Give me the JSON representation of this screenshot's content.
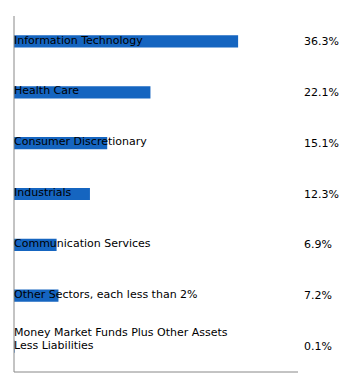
{
  "chart_data": {
    "type": "bar",
    "orientation": "horizontal",
    "categories": [
      "Information Technology",
      "Health Care",
      "Consumer Discretionary",
      "Industrials",
      "Communication Services",
      "Other Sectors, each less than 2%",
      "Money Market Funds Plus Other Assets\nLess Liabilities"
    ],
    "values": [
      36.3,
      22.1,
      15.1,
      12.3,
      6.9,
      7.2,
      0.1
    ],
    "value_labels": [
      "36.3%",
      "22.1%",
      "15.1%",
      "12.3%",
      "6.9%",
      "7.2%",
      "0.1%"
    ],
    "data_labels": true,
    "color": "#1565C0",
    "xlim": [
      0,
      46
    ],
    "tick_labels": false
  }
}
